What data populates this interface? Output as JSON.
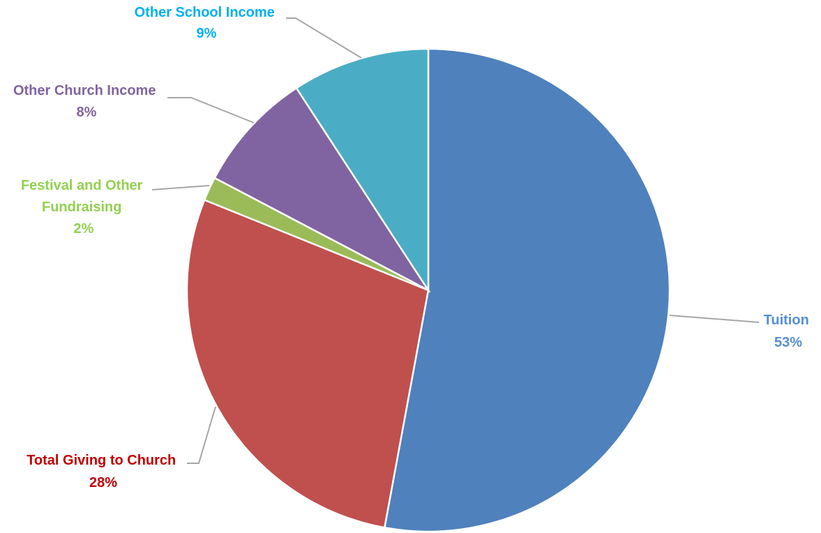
{
  "chart_data": {
    "type": "pie",
    "start_angle_deg": 0,
    "direction": "clockwise",
    "slices": [
      {
        "label": "Tuition",
        "pct_label": "53%",
        "value": 52.9,
        "color": "#4f81bd",
        "text_color": "#558ed5"
      },
      {
        "label": "Total Giving to Church",
        "pct_label": "28%",
        "value": 28.2,
        "color": "#c0504d",
        "text_color": "#c00000"
      },
      {
        "label": "Festival and Other Fundraising",
        "pct_label": "2%",
        "value": 1.6,
        "color": "#9bbb59",
        "text_color": "#92d050"
      },
      {
        "label": "Other Church Income",
        "pct_label": "8%",
        "value": 8.1,
        "color": "#8064a2",
        "text_color": "#8064a2"
      },
      {
        "label": "Other School Income",
        "pct_label": "9%",
        "value": 9.2,
        "color": "#4bacc6",
        "text_color": "#00b0f0"
      }
    ]
  }
}
